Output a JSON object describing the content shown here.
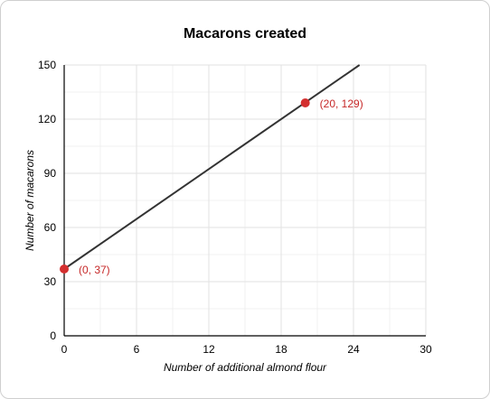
{
  "chart_data": {
    "type": "line",
    "title": "Macarons created",
    "xlabel": "Number of additional almond flour",
    "ylabel": "Number of macarons",
    "xlim": [
      0,
      30
    ],
    "ylim": [
      0,
      150
    ],
    "x_ticks": [
      0,
      6,
      12,
      18,
      24,
      30
    ],
    "y_ticks": [
      0,
      30,
      60,
      90,
      120,
      150
    ],
    "x_minor_step": 3,
    "y_minor_step": 15,
    "grid": true,
    "line": {
      "x": [
        0,
        24.5
      ],
      "y": [
        37,
        150
      ],
      "color": "#333333"
    },
    "points": [
      {
        "x": 0,
        "y": 37,
        "label": "(0, 37)"
      },
      {
        "x": 20,
        "y": 129,
        "label": "(20, 129)"
      }
    ],
    "point_color": "#d32f2f",
    "label_color": "#c62828"
  }
}
